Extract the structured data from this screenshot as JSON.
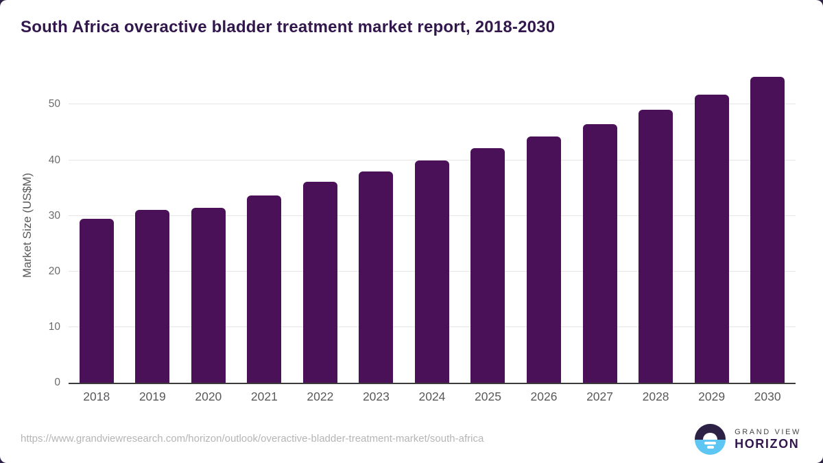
{
  "header": {
    "title": "South Africa overactive bladder treatment market report, 2018-2030"
  },
  "chart_data": {
    "type": "bar",
    "title": "South Africa overactive bladder treatment market report, 2018-2030",
    "categories": [
      "2018",
      "2019",
      "2020",
      "2021",
      "2022",
      "2023",
      "2024",
      "2025",
      "2026",
      "2027",
      "2028",
      "2029",
      "2030"
    ],
    "values": [
      29.5,
      31.1,
      31.4,
      33.7,
      36.1,
      38.0,
      40.0,
      42.1,
      44.2,
      46.5,
      49.1,
      51.8,
      55.0
    ],
    "xlabel": "",
    "ylabel": "Market Size (US$M)",
    "yticks": [
      0,
      10,
      20,
      30,
      40,
      50
    ],
    "ylim": [
      0,
      56.7
    ],
    "grid": true,
    "legend": false,
    "bar_color": "#4a1158",
    "gridline_color": "#e5e5e5",
    "axis_line_color": "#3b3b3b",
    "tick_label_color": "#6a6a6a",
    "x_label_color": "#58595b"
  },
  "footer": {
    "source_url": "https://www.grandviewresearch.com/horizon/outlook/overactive-bladder-treatment-market/south-africa",
    "logo": {
      "brand_top": "GRAND VIEW",
      "brand_bottom": "HORIZON",
      "icon": "sunrise-horizon-icon",
      "icon_sky_color": "#2d2245",
      "icon_sea_color": "#5ec6f2"
    }
  },
  "colors": {
    "title": "#32174d",
    "card_background": "#ffffff",
    "page_corner_background": "#2d2245",
    "url_text": "#b5b5b5"
  }
}
